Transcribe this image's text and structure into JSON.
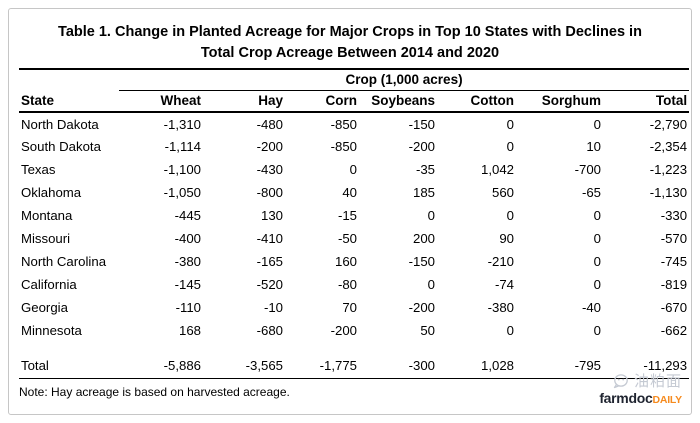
{
  "header": {
    "title_line1": "Table 1. Change in Planted Acreage for Major Crops in Top 10 States with Declines in",
    "title_line2": "Total Crop Acreage Between 2014 and 2020"
  },
  "chart_data": {
    "type": "table",
    "title": "Table 1. Change in Planted Acreage for Major Crops in Top 10 States with Declines in Total Crop Acreage Between 2014 and 2020",
    "group_header": "Crop (1,000 acres)",
    "units": "1,000 acres",
    "columns": [
      "State",
      "Wheat",
      "Hay",
      "Corn",
      "Soybeans",
      "Cotton",
      "Sorghum",
      "Total"
    ],
    "rows": [
      [
        "North Dakota",
        -1310,
        -480,
        -850,
        -150,
        0,
        0,
        -2790
      ],
      [
        "South Dakota",
        -1114,
        -200,
        -850,
        -200,
        0,
        10,
        -2354
      ],
      [
        "Texas",
        -1100,
        -430,
        0,
        -35,
        1042,
        -700,
        -1223
      ],
      [
        "Oklahoma",
        -1050,
        -800,
        40,
        185,
        560,
        -65,
        -1130
      ],
      [
        "Montana",
        -445,
        130,
        -15,
        0,
        0,
        0,
        -330
      ],
      [
        "Missouri",
        -400,
        -410,
        -50,
        200,
        90,
        0,
        -570
      ],
      [
        "North Carolina",
        -380,
        -165,
        160,
        -150,
        -210,
        0,
        -745
      ],
      [
        "California",
        -145,
        -520,
        -80,
        0,
        -74,
        0,
        -819
      ],
      [
        "Georgia",
        -110,
        -10,
        70,
        -200,
        -380,
        -40,
        -670
      ],
      [
        "Minnesota",
        168,
        -680,
        -200,
        50,
        0,
        0,
        -662
      ]
    ],
    "total_row": [
      "Total",
      -5886,
      -3565,
      -1775,
      -300,
      1028,
      -795,
      -11293
    ],
    "note": "Note: Hay acreage is based on harvested acreage."
  },
  "footer": {
    "note": "Note: Hay acreage is based on harvested acreage."
  },
  "watermark": {
    "chinese_text": "油粕面",
    "logo_farmdoc": "farmdoc",
    "logo_daily": "DAILY",
    "icon": "wechat-chat-bubble-icon",
    "colors": {
      "farmdoc_navy": "#1f2430",
      "daily_orange": "#f68b1f",
      "watermark_gray": "#c5cad3"
    }
  },
  "colors": {
    "background": "#ffffff",
    "frame_border": "#c6c6c6",
    "text": "#000000",
    "rule": "#000000"
  }
}
